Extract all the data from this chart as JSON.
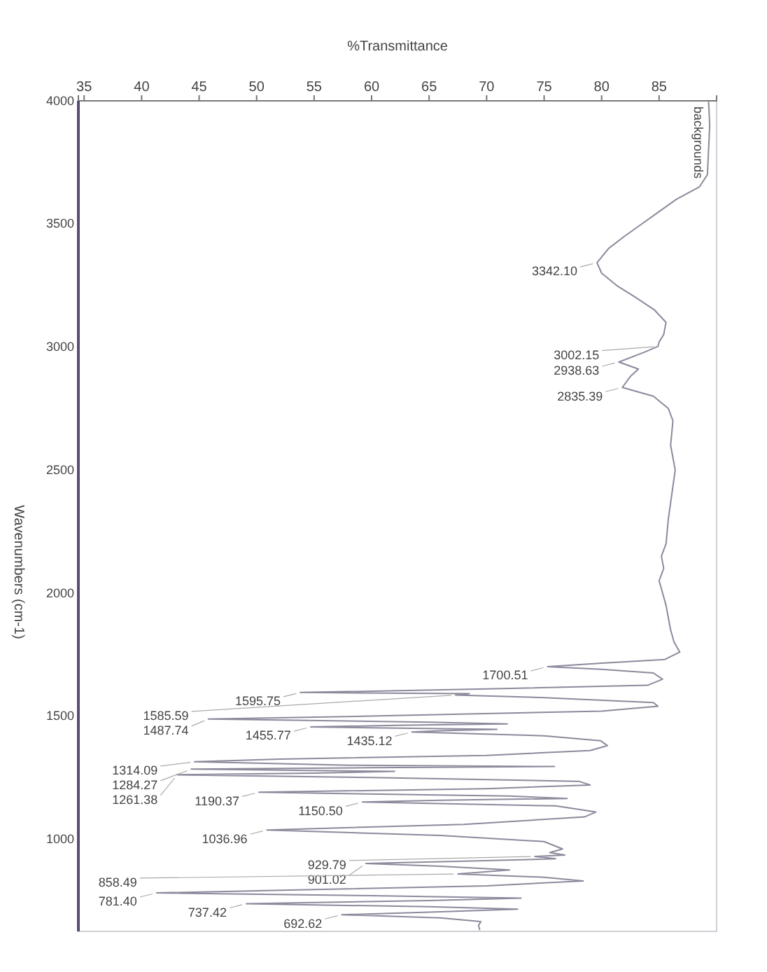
{
  "chart_data": {
    "type": "line",
    "xlabel": "%Transmittance",
    "ylabel": "Wavenumbers (cm-1)",
    "xlim": [
      34.5,
      90
    ],
    "xticks": [
      35,
      40,
      45,
      50,
      55,
      60,
      65,
      70,
      75,
      80,
      85
    ],
    "ylim": [
      625,
      4000
    ],
    "yticks": [
      1000,
      1500,
      2000,
      2500,
      3000,
      3500,
      4000
    ],
    "grid": false,
    "legend": false,
    "marker": "none",
    "line_style": "solid",
    "series": [
      {
        "name": "backgrounds",
        "color": "#8c8a9c",
        "values": [
          4000,
          3900,
          3800,
          3700,
          3650,
          3600,
          3550,
          3500,
          3450,
          3400,
          3342.1,
          3300,
          3250,
          3200,
          3150,
          3100,
          3050,
          3020,
          3002.15,
          2980,
          2938.63,
          2910,
          2880,
          2835.39,
          2800,
          2750,
          2700,
          2600,
          2500,
          2400,
          2300,
          2200,
          2150,
          2100,
          2050,
          2000,
          1950,
          1900,
          1850,
          1800,
          1760,
          1730,
          1715,
          1700.51,
          1690,
          1675,
          1650,
          1625,
          1610,
          1595.75,
          1591,
          1585.59,
          1575,
          1555,
          1540,
          1520,
          1500,
          1487.74,
          1475,
          1468,
          1462,
          1455.77,
          1446,
          1440,
          1435.12,
          1420,
          1400,
          1380,
          1360,
          1340,
          1325,
          1314.09,
          1300,
          1295,
          1290,
          1284.27,
          1275,
          1268,
          1261.38,
          1250,
          1235,
          1220,
          1205,
          1190.37,
          1175,
          1165,
          1158,
          1150.5,
          1135,
          1110,
          1090,
          1060,
          1036.96,
          1015,
          990,
          960,
          945,
          935,
          929.79,
          920,
          910,
          901.02,
          890,
          875,
          858.49,
          845,
          830,
          810,
          795,
          781.4,
          770,
          760,
          750,
          737.42,
          725,
          715,
          705,
          692.62,
          680,
          665,
          650,
          630
        ],
        "x": [
          89.3,
          89.4,
          89.3,
          89.2,
          88.5,
          86.5,
          85,
          83.5,
          82,
          80.6,
          79.6,
          80,
          81.3,
          83,
          84.6,
          85.6,
          85.4,
          85,
          84.9,
          83.8,
          81.5,
          83.2,
          82.5,
          81.8,
          84.5,
          85.8,
          86.2,
          86,
          86.4,
          86.1,
          85.8,
          85.6,
          85.2,
          85.4,
          85,
          85.3,
          85.6,
          85.8,
          86,
          86.3,
          86.8,
          85.5,
          80,
          75.3,
          80,
          84.5,
          85.3,
          84,
          70,
          53.8,
          68.5,
          67.3,
          75,
          84.5,
          84.9,
          80,
          60,
          45.8,
          65,
          71.8,
          62,
          54.7,
          70.9,
          66,
          63.5,
          75,
          79.9,
          80.5,
          79,
          70,
          52,
          44.6,
          58,
          75.9,
          60,
          44.3,
          62,
          55,
          43.1,
          60,
          78,
          79,
          70,
          50.2,
          72,
          77,
          66,
          59.2,
          76,
          79.5,
          78.5,
          68,
          50.9,
          66,
          75,
          76.6,
          75.5,
          76.8,
          74.2,
          76,
          68,
          59.5,
          66,
          72,
          67.5,
          75,
          78.4,
          70,
          55,
          41.3,
          60,
          73,
          65,
          49.1,
          65,
          72.7,
          66,
          57.4,
          66,
          69.5,
          69.3,
          69.4
        ]
      }
    ],
    "annotations": [
      {
        "text": "3342.10",
        "x": 79.6,
        "y": 3342.1
      },
      {
        "text": "3002.15",
        "x": 84.9,
        "y": 3002.15
      },
      {
        "text": "2938.63",
        "x": 81.5,
        "y": 2938.63
      },
      {
        "text": "2835.39",
        "x": 81.8,
        "y": 2835.39
      },
      {
        "text": "1700.51",
        "x": 75.3,
        "y": 1700.51
      },
      {
        "text": "1595.75",
        "x": 53.8,
        "y": 1595.75
      },
      {
        "text": "1585.59",
        "x": 67.3,
        "y": 1585.59
      },
      {
        "text": "1487.74",
        "x": 45.8,
        "y": 1487.74
      },
      {
        "text": "1455.77",
        "x": 54.7,
        "y": 1455.77
      },
      {
        "text": "1435.12",
        "x": 63.5,
        "y": 1435.12
      },
      {
        "text": "1314.09",
        "x": 44.6,
        "y": 1314.09
      },
      {
        "text": "1284.27",
        "x": 44.3,
        "y": 1284.27
      },
      {
        "text": "1261.38",
        "x": 43.1,
        "y": 1261.38
      },
      {
        "text": "1190.37",
        "x": 50.2,
        "y": 1190.37
      },
      {
        "text": "1150.50",
        "x": 59.2,
        "y": 1150.5
      },
      {
        "text": "1036.96",
        "x": 50.9,
        "y": 1036.96
      },
      {
        "text": "929.79",
        "x": 74.2,
        "y": 929.79
      },
      {
        "text": "901.02",
        "x": 59.5,
        "y": 901.02
      },
      {
        "text": "858.49",
        "x": 67.5,
        "y": 858.49
      },
      {
        "text": "781.40",
        "x": 41.3,
        "y": 781.4
      },
      {
        "text": "737.42",
        "x": 49.1,
        "y": 737.42
      },
      {
        "text": "692.62",
        "x": 57.4,
        "y": 692.62
      }
    ]
  }
}
